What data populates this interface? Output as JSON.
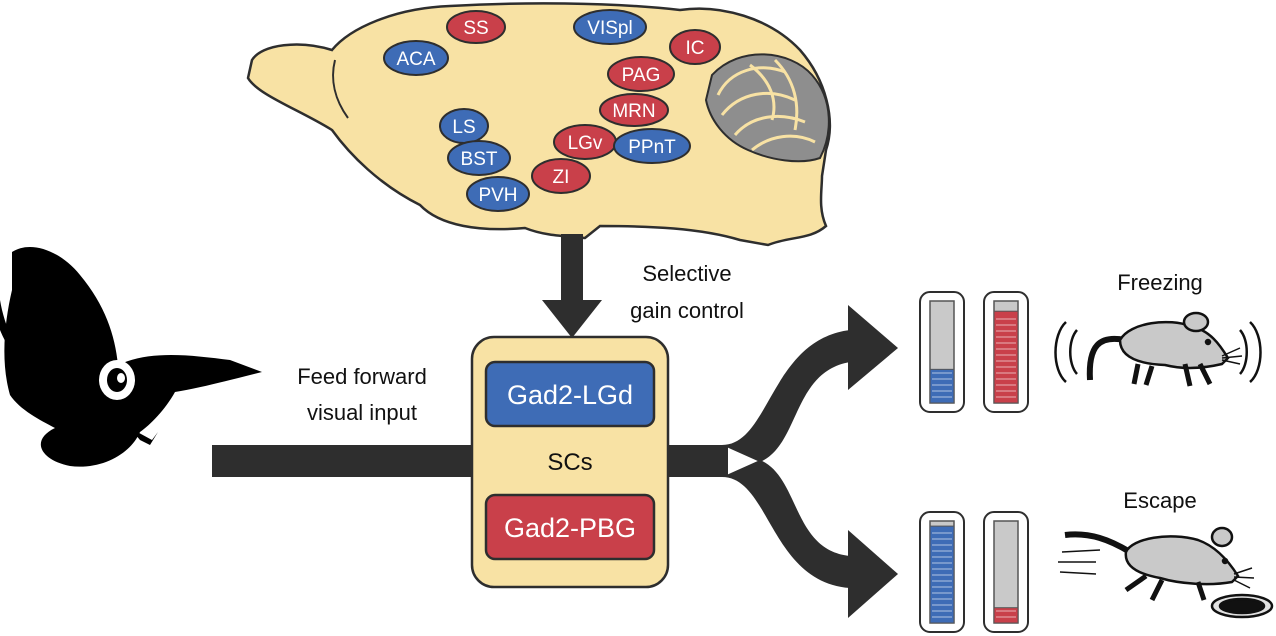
{
  "colors": {
    "blue": "#3e6cb6",
    "red": "#c9404a",
    "tan": "#f8e2a4",
    "dark": "#2e2e2e",
    "gray": "#c9c9c9"
  },
  "brain_regions": [
    {
      "label": "SS",
      "color": "red"
    },
    {
      "label": "VISpl",
      "color": "blue"
    },
    {
      "label": "IC",
      "color": "red"
    },
    {
      "label": "ACA",
      "color": "blue"
    },
    {
      "label": "PAG",
      "color": "red"
    },
    {
      "label": "MRN",
      "color": "red"
    },
    {
      "label": "LS",
      "color": "blue"
    },
    {
      "label": "LGv",
      "color": "red"
    },
    {
      "label": "PPnT",
      "color": "blue"
    },
    {
      "label": "BST",
      "color": "blue"
    },
    {
      "label": "ZI",
      "color": "red"
    },
    {
      "label": "PVH",
      "color": "blue"
    }
  ],
  "labels": {
    "selective_line1": "Selective",
    "selective_line2": "gain control",
    "feed_line1": "Feed forward",
    "feed_line2": "visual input",
    "gad2_lgd": "Gad2-LGd",
    "scs": "SCs",
    "gad2_pbg": "Gad2-PBG",
    "freezing": "Freezing",
    "escape": "Escape"
  },
  "levels": {
    "freezing": {
      "blue": 0.33,
      "red": 0.9
    },
    "escape": {
      "blue": 0.95,
      "red": 0.15
    }
  }
}
